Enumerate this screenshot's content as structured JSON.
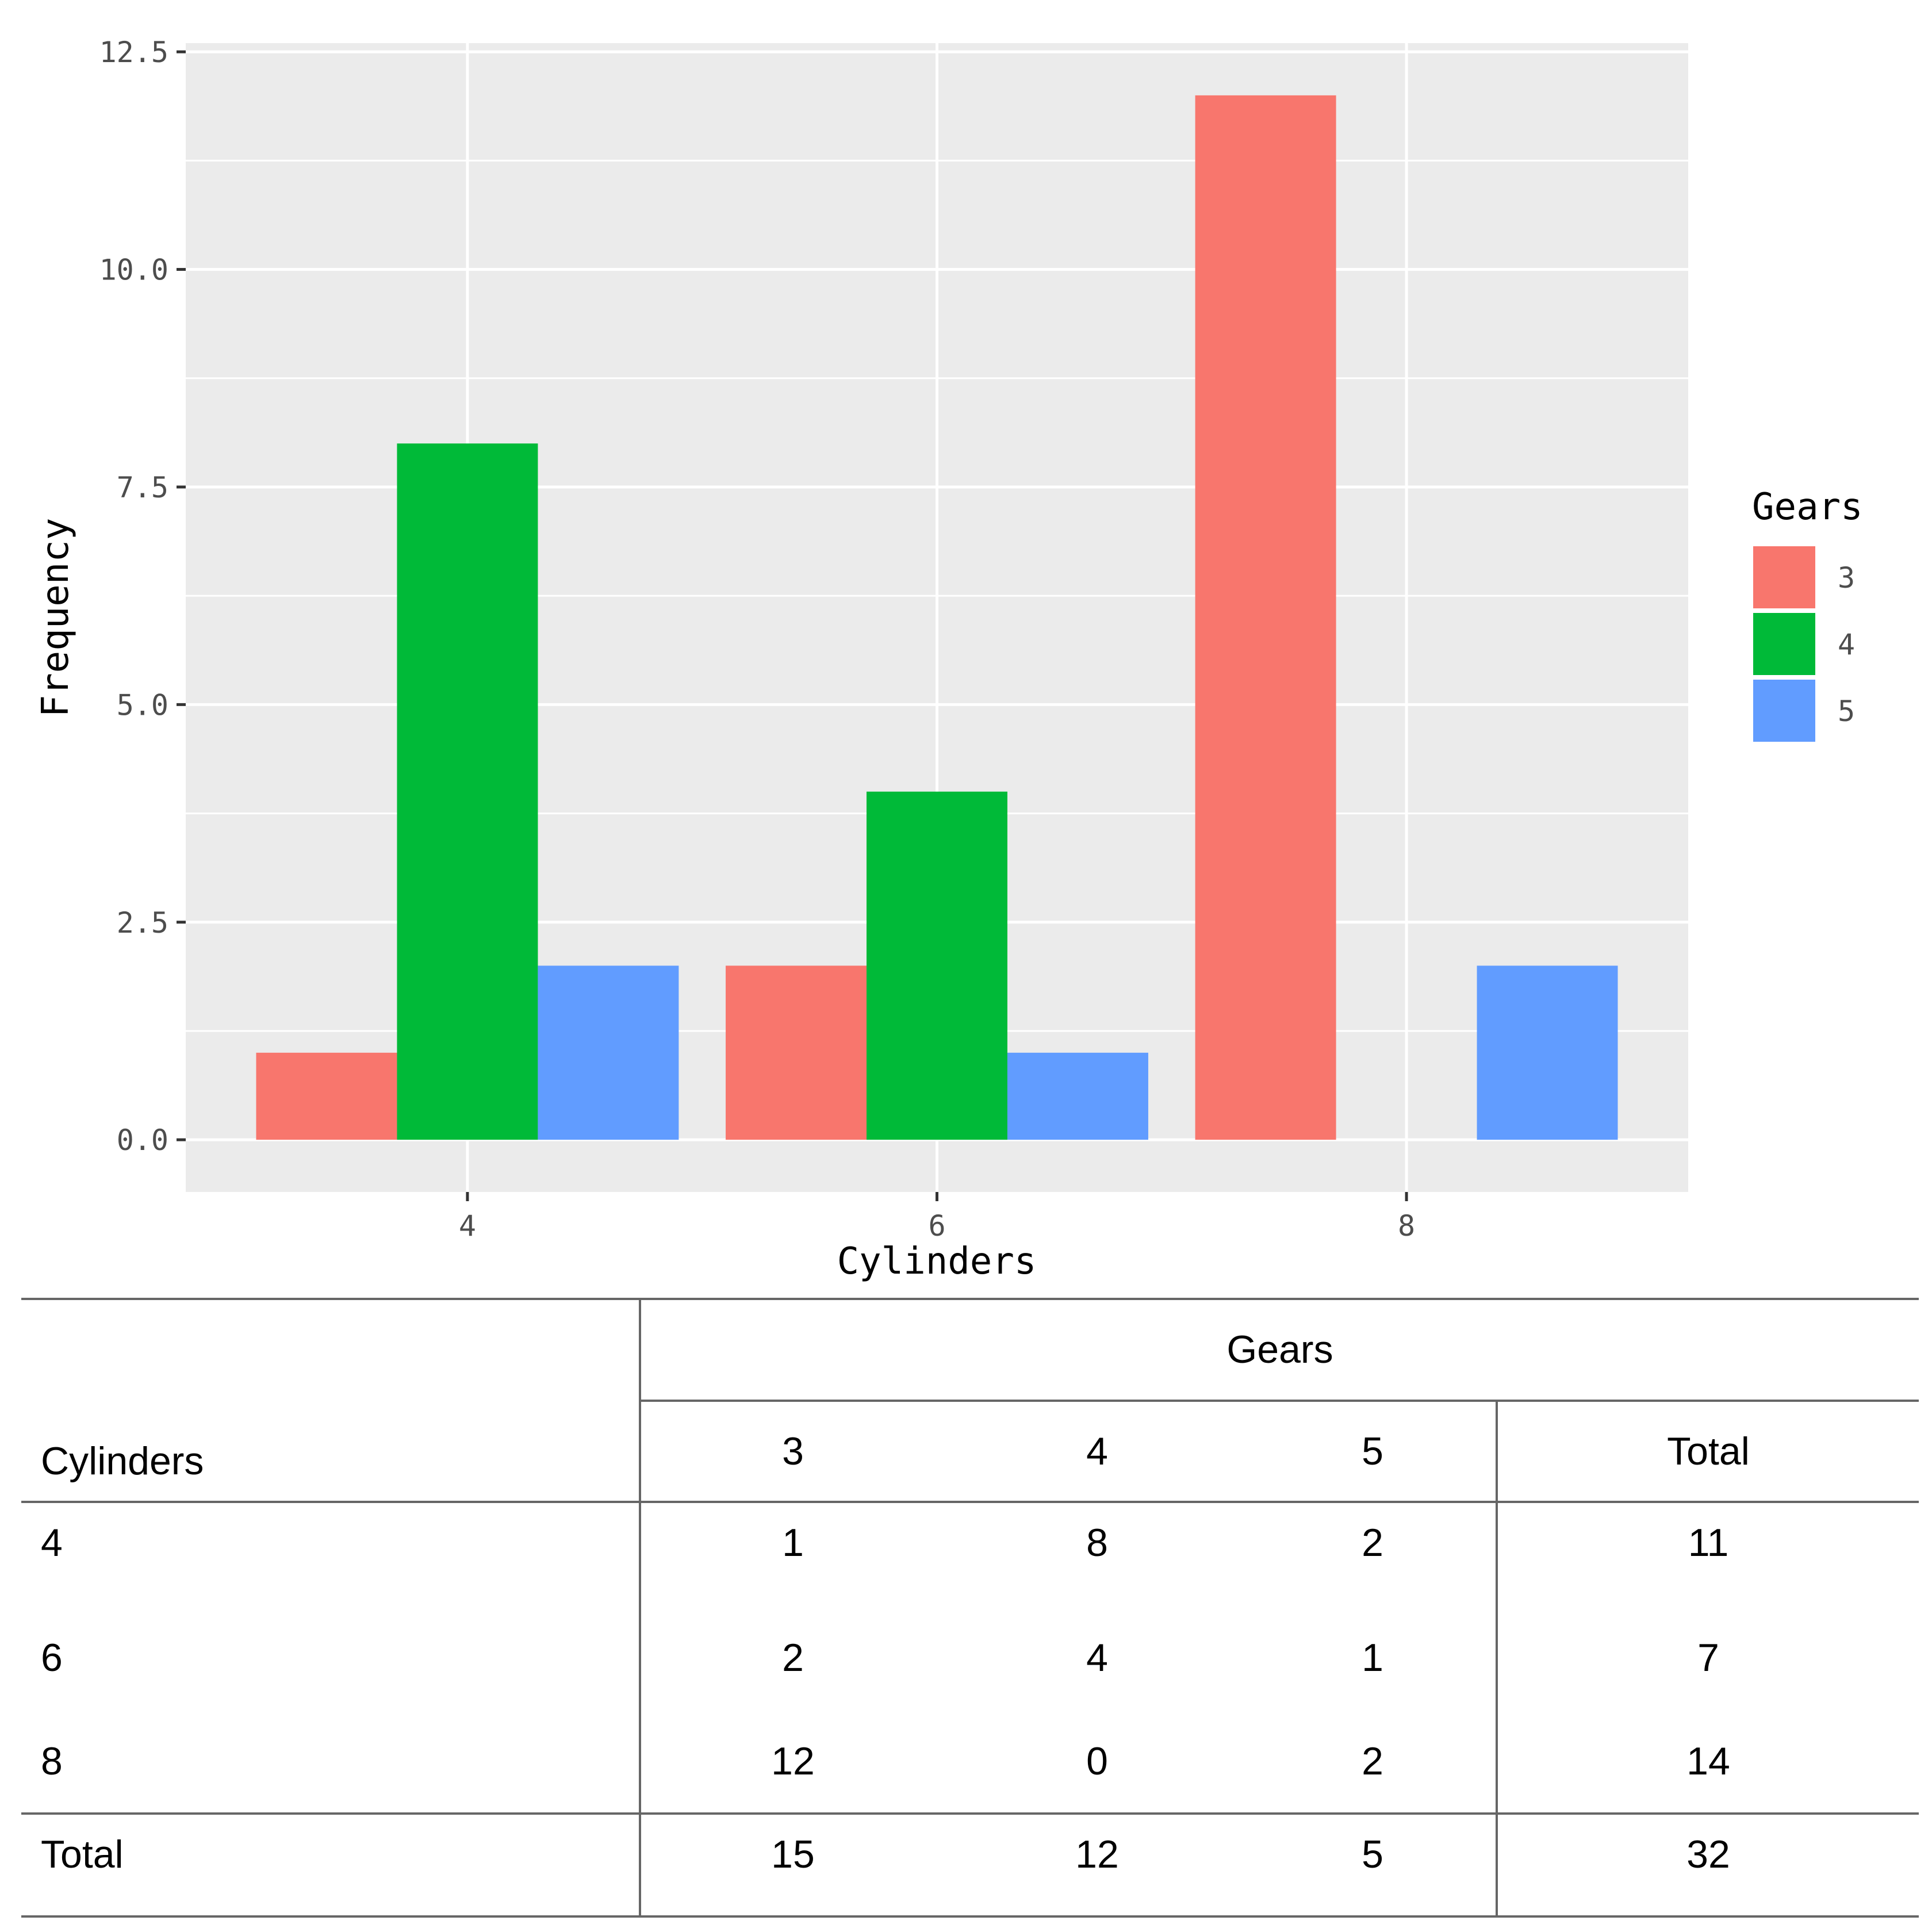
{
  "chart_data": {
    "type": "bar",
    "categories": [
      "4",
      "6",
      "8"
    ],
    "series": [
      {
        "name": "3",
        "values": [
          1,
          2,
          12
        ],
        "color": "#F8766D"
      },
      {
        "name": "4",
        "values": [
          8,
          4,
          0
        ],
        "color": "#00BA38"
      },
      {
        "name": "5",
        "values": [
          2,
          1,
          2
        ],
        "color": "#619CFF"
      }
    ],
    "xlabel": "Cylinders",
    "ylabel": "Frequency",
    "ylim": [
      -0.6,
      12.6
    ],
    "yticks": [
      "0.0",
      "2.5",
      "5.0",
      "7.5",
      "10.0",
      "12.5"
    ],
    "ytick_values": [
      0,
      2.5,
      5,
      7.5,
      10,
      12.5
    ],
    "legend_title": "Gears",
    "legend_position": "right",
    "grid": true,
    "panel_color": "#EBEBEB"
  },
  "table": {
    "row_header": "Cylinders",
    "col_group_header": "Gears",
    "columns": [
      "3",
      "4",
      "5",
      "Total"
    ],
    "rows": [
      {
        "label": "4",
        "values": [
          "1",
          "8",
          "2",
          "11"
        ]
      },
      {
        "label": "6",
        "values": [
          "2",
          "4",
          "1",
          "7"
        ]
      },
      {
        "label": "8",
        "values": [
          "12",
          "0",
          "2",
          "14"
        ]
      }
    ],
    "total": {
      "label": "Total",
      "values": [
        "15",
        "12",
        "5",
        "32"
      ]
    }
  }
}
